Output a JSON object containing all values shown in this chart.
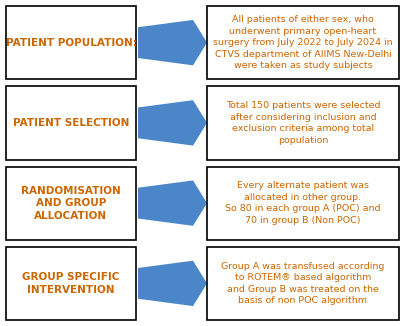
{
  "background_color": "#ffffff",
  "left_box_border": "#000000",
  "right_box_border": "#000000",
  "arrow_color": "#4A86C8",
  "left_text_color": "#CC6600",
  "right_text_color": "#CC6600",
  "fig_w": 4.05,
  "fig_h": 3.26,
  "dpi": 100,
  "rows": [
    {
      "left_label": "PATIENT POPULATION:",
      "right_text": "All patients of either sex, who\nunderwent primary open-heart\nsurgery from July 2022 to July 2024 in\nCTVS department of AIIMS New-Delhi\nwere taken as study subjects"
    },
    {
      "left_label": "PATIENT SELECTION",
      "right_text": "Total 150 patients were selected\nafter considering inclusion and\nexclusion criteria among total\npopulation"
    },
    {
      "left_label": "RANDOMISATION\nAND GROUP\nALLOCATION",
      "right_text": "Every alternate patient was\nallocated in other group.\nSo 80 in each group A (POC) and\n70 in group B (Non POC)"
    },
    {
      "left_label": "GROUP SPECIFIC\nINTERVENTION",
      "right_text": "Group A was transfused according\nto ROTEM® based algorithm\nand Group B was treated on the\nbasis of non POC algorithm"
    }
  ]
}
